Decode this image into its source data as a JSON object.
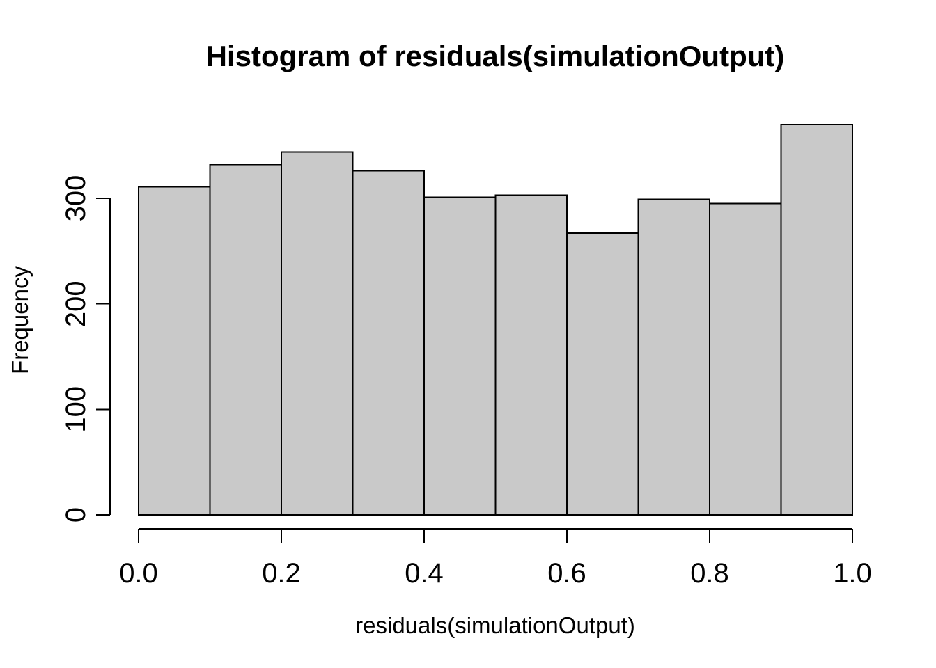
{
  "chart_data": {
    "type": "bar",
    "subtype": "histogram",
    "title": "Histogram of residuals(simulationOutput)",
    "xlabel": "residuals(simulationOutput)",
    "ylabel": "Frequency",
    "bin_edges": [
      0.0,
      0.1,
      0.2,
      0.3,
      0.4,
      0.5,
      0.6,
      0.7,
      0.8,
      0.9,
      1.0
    ],
    "values": [
      311,
      332,
      344,
      326,
      301,
      303,
      267,
      299,
      295,
      370
    ],
    "x_tick_values": [
      0.0,
      0.2,
      0.4,
      0.6,
      0.8,
      1.0
    ],
    "x_tick_labels": [
      "0.0",
      "0.2",
      "0.4",
      "0.6",
      "0.8",
      "1.0"
    ],
    "y_tick_values": [
      0,
      100,
      200,
      300
    ],
    "y_tick_labels": [
      "0",
      "100",
      "200",
      "300"
    ],
    "xlim": [
      0.0,
      1.0
    ],
    "ylim": [
      0,
      370
    ],
    "grid": false,
    "legend_position": "none",
    "bar_fill": "#c9c9c9",
    "bar_stroke": "#000000",
    "axis_color": "#000000",
    "text_color": "#000000",
    "background": "#ffffff"
  }
}
